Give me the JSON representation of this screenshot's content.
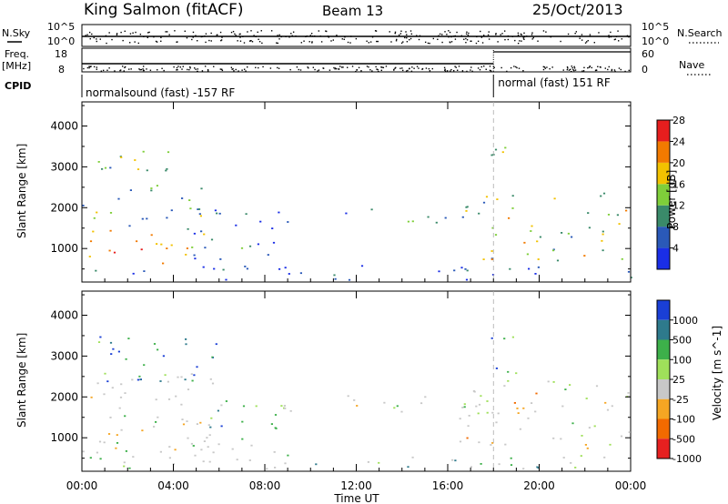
{
  "header": {
    "station": "King Salmon (fitACF)",
    "beam": "Beam 13",
    "date": "25/Oct/2013"
  },
  "status_panel": {
    "left_labels": {
      "nsky": "N.Sky",
      "freq": "Freq.",
      "freq_unit": "[MHz]",
      "cpid": "CPID"
    },
    "right_labels": {
      "nsearch": "N.Search",
      "nave": "Nave"
    },
    "noise_ticks_left": [
      "10^5",
      "10^0"
    ],
    "noise_ticks_right": [
      "10^5",
      "10^0"
    ],
    "freq_ticks": [
      "18",
      "8"
    ],
    "nave_ticks": [
      "60",
      "0"
    ],
    "cpid_segments": [
      {
        "label": "normalsound (fast) -157 RF",
        "start_hour": 0,
        "end_hour": 18.0
      },
      {
        "label": "normal (fast) 151 RF",
        "start_hour": 18.0,
        "end_hour": 24
      }
    ]
  },
  "chart_data": [
    {
      "type": "heatmap",
      "panel": "power",
      "ylabel": "Slant Range [km]",
      "ylim": [
        180,
        4590
      ],
      "yticks": [
        "1000",
        "2000",
        "3000",
        "4000"
      ],
      "xlim_hours": [
        0,
        24
      ],
      "colorbar": {
        "label": "Power [dB]",
        "ticks": [
          "4",
          "8",
          "12",
          "16",
          "20",
          "24",
          "28"
        ],
        "colors": [
          "#1a2ee6",
          "#2a59b8",
          "#3a8a6a",
          "#7fcf3a",
          "#f2c200",
          "#f27a00",
          "#e61e1e"
        ]
      },
      "scatter_regions": [
        {
          "t": [
            0.0,
            5.8
          ],
          "r": [
            650,
            1500
          ],
          "level": 0.7
        },
        {
          "t": [
            0.0,
            5.5
          ],
          "r": [
            1500,
            2600
          ],
          "level": 0.4
        },
        {
          "t": [
            0.5,
            4.5
          ],
          "r": [
            2600,
            3500
          ],
          "level": 0.45
        },
        {
          "t": [
            4.5,
            9.2
          ],
          "r": [
            700,
            2000
          ],
          "level": 0.2
        },
        {
          "t": [
            11.5,
            16.0
          ],
          "r": [
            1650,
            2100
          ],
          "level": 0.25
        },
        {
          "t": [
            16.5,
            24.0
          ],
          "r": [
            700,
            2400
          ],
          "level": 0.5
        },
        {
          "t": [
            17.8,
            19.2
          ],
          "r": [
            2400,
            3500
          ],
          "level": 0.55
        },
        {
          "t": [
            0.0,
            24.0
          ],
          "r": [
            250,
            600
          ],
          "level": 0.15
        }
      ]
    },
    {
      "type": "heatmap",
      "panel": "velocity",
      "ylabel": "Slant Range [km]",
      "ylim": [
        180,
        4590
      ],
      "yticks": [
        "1000",
        "2000",
        "3000",
        "4000"
      ],
      "xlim_hours": [
        0,
        24
      ],
      "colorbar": {
        "label": "Velocity [m s^-1]",
        "ticks": [
          "1000",
          "500",
          "100",
          "25",
          "-25",
          "-100",
          "-500",
          "-1000"
        ],
        "colors": [
          "#1a3fd6",
          "#2e7a8c",
          "#3db04a",
          "#9fe05a",
          "#c8c8c8",
          "#f5a623",
          "#f26a00",
          "#e62020"
        ]
      },
      "scatter_regions": [
        {
          "t": [
            0.0,
            5.8
          ],
          "r": [
            650,
            2600
          ],
          "level": 0.5
        },
        {
          "t": [
            0.5,
            6.0
          ],
          "r": [
            2400,
            3500
          ],
          "level": 0.8
        },
        {
          "t": [
            4.5,
            9.2
          ],
          "r": [
            600,
            2000
          ],
          "level": 0.65
        },
        {
          "t": [
            11.5,
            16.0
          ],
          "r": [
            1650,
            2100
          ],
          "level": 0.5
        },
        {
          "t": [
            16.5,
            24.0
          ],
          "r": [
            700,
            2400
          ],
          "level": 0.45
        },
        {
          "t": [
            17.8,
            19.2
          ],
          "r": [
            2400,
            3500
          ],
          "level": 0.75
        },
        {
          "t": [
            0.0,
            24.0
          ],
          "r": [
            250,
            600
          ],
          "level": 0.6
        }
      ]
    }
  ],
  "x_axis": {
    "tick_labels": [
      "00:00",
      "04:00",
      "08:00",
      "12:00",
      "16:00",
      "20:00",
      "00:00"
    ],
    "label": "Time UT"
  }
}
